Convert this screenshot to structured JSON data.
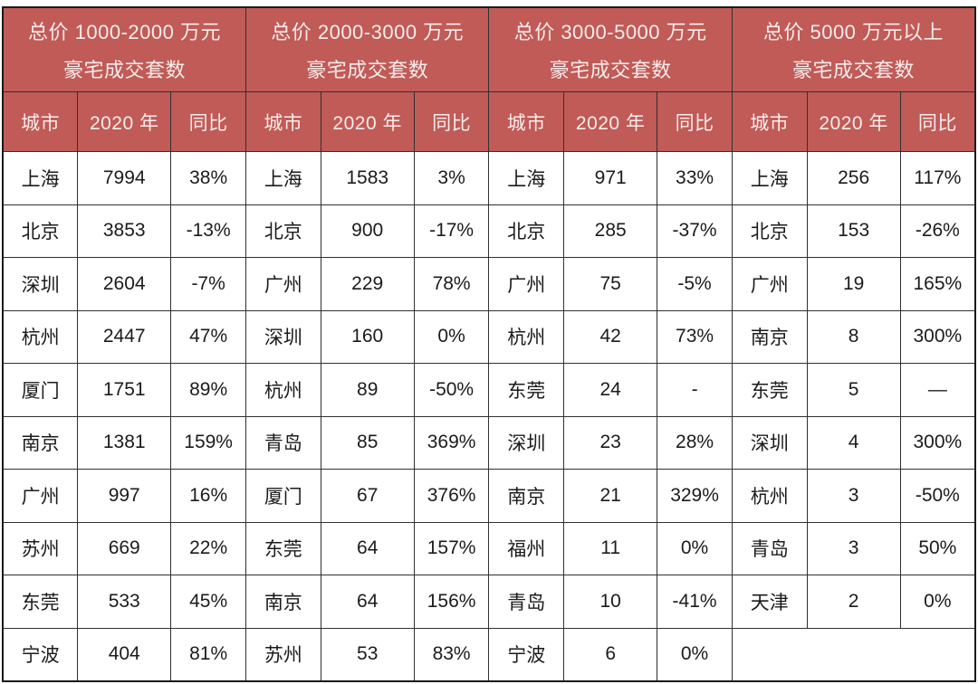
{
  "styles": {
    "header_bg": "#c05b57",
    "header_text": "#f8ecec",
    "border_color": "#303030",
    "body_text": "#1b1b1b"
  },
  "chart_data": [
    {
      "type": "table",
      "title": "总价 1000-2000 万元",
      "subtitle": "豪宅成交套数",
      "columns": [
        "城市",
        "2020 年",
        "同比"
      ],
      "rows": [
        [
          "上海",
          "7994",
          "38%"
        ],
        [
          "北京",
          "3853",
          "-13%"
        ],
        [
          "深圳",
          "2604",
          "-7%"
        ],
        [
          "杭州",
          "2447",
          "47%"
        ],
        [
          "厦门",
          "1751",
          "89%"
        ],
        [
          "南京",
          "1381",
          "159%"
        ],
        [
          "广州",
          "997",
          "16%"
        ],
        [
          "苏州",
          "669",
          "22%"
        ],
        [
          "东莞",
          "533",
          "45%"
        ],
        [
          "宁波",
          "404",
          "81%"
        ]
      ]
    },
    {
      "type": "table",
      "title": "总价 2000-3000 万元",
      "subtitle": "豪宅成交套数",
      "columns": [
        "城市",
        "2020 年",
        "同比"
      ],
      "rows": [
        [
          "上海",
          "1583",
          "3%"
        ],
        [
          "北京",
          "900",
          "-17%"
        ],
        [
          "广州",
          "229",
          "78%"
        ],
        [
          "深圳",
          "160",
          "0%"
        ],
        [
          "杭州",
          "89",
          "-50%"
        ],
        [
          "青岛",
          "85",
          "369%"
        ],
        [
          "厦门",
          "67",
          "376%"
        ],
        [
          "东莞",
          "64",
          "157%"
        ],
        [
          "南京",
          "64",
          "156%"
        ],
        [
          "苏州",
          "53",
          "83%"
        ]
      ]
    },
    {
      "type": "table",
      "title": "总价 3000-5000 万元",
      "subtitle": "豪宅成交套数",
      "columns": [
        "城市",
        "2020 年",
        "同比"
      ],
      "rows": [
        [
          "上海",
          "971",
          "33%"
        ],
        [
          "北京",
          "285",
          "-37%"
        ],
        [
          "广州",
          "75",
          "-5%"
        ],
        [
          "杭州",
          "42",
          "73%"
        ],
        [
          "东莞",
          "24",
          "-"
        ],
        [
          "深圳",
          "23",
          "28%"
        ],
        [
          "南京",
          "21",
          "329%"
        ],
        [
          "福州",
          "11",
          "0%"
        ],
        [
          "青岛",
          "10",
          "-41%"
        ],
        [
          "宁波",
          "6",
          "0%"
        ]
      ]
    },
    {
      "type": "table",
      "title": "总价 5000 万元以上",
      "subtitle": "豪宅成交套数",
      "columns": [
        "城市",
        "2020 年",
        "同比"
      ],
      "rows": [
        [
          "上海",
          "256",
          "117%"
        ],
        [
          "北京",
          "153",
          "-26%"
        ],
        [
          "广州",
          "19",
          "165%"
        ],
        [
          "南京",
          "8",
          "300%"
        ],
        [
          "东莞",
          "5",
          "—"
        ],
        [
          "深圳",
          "4",
          "300%"
        ],
        [
          "杭州",
          "3",
          "-50%"
        ],
        [
          "青岛",
          "3",
          "50%"
        ],
        [
          "天津",
          "2",
          "0%"
        ]
      ]
    }
  ]
}
